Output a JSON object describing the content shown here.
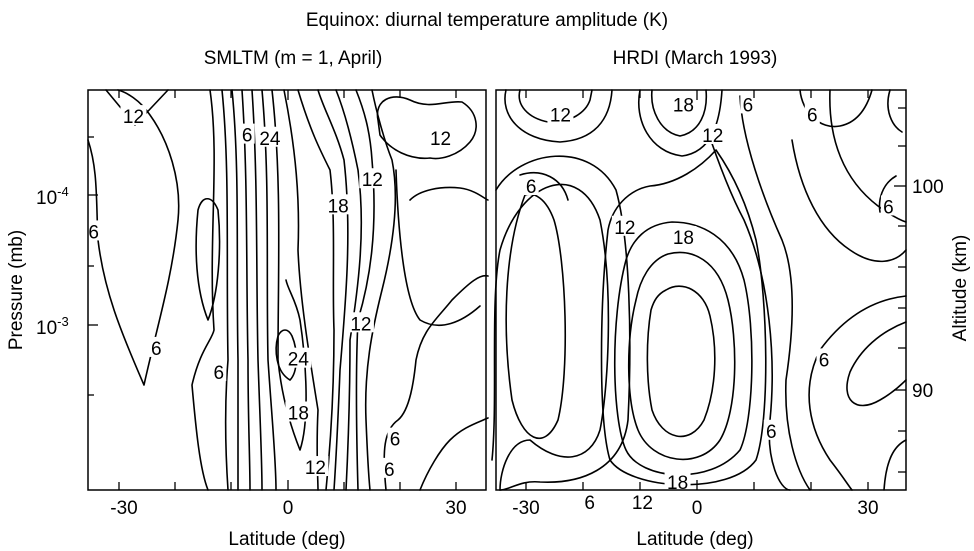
{
  "figure": {
    "title": "Equinox: diurnal temperature amplitude (K)"
  },
  "chart_data": [
    {
      "type": "contour",
      "title": "SMLTM (m = 1, April)",
      "xlabel": "Latitude (deg)",
      "ylabel": "Pressure (mb)",
      "xlim": [
        -35,
        35
      ],
      "y_scale": "log",
      "x_tick_labels": [
        "-30",
        "0",
        "30"
      ],
      "x_ticks": [
        -30,
        0,
        30
      ],
      "y_tick_labels": [
        "10",
        "10"
      ],
      "y_tick_exponents": [
        "-4",
        "-3"
      ],
      "contour_interval": 3,
      "contour_labels": [
        {
          "text": "12",
          "x": -27,
          "p": 3e-05
        },
        {
          "text": "6",
          "x": -7,
          "p": 4e-05
        },
        {
          "text": "24",
          "x": -3,
          "p": 4.2e-05
        },
        {
          "text": "12",
          "x": 27,
          "p": 4.2e-05
        },
        {
          "text": "12",
          "x": 15,
          "p": 8e-05
        },
        {
          "text": "18",
          "x": 9,
          "p": 0.00012
        },
        {
          "text": "6",
          "x": -34,
          "p": 0.00018
        },
        {
          "text": "12",
          "x": 13,
          "p": 0.00075
        },
        {
          "text": "6",
          "x": -23,
          "p": 0.0011
        },
        {
          "text": "24",
          "x": 2,
          "p": 0.0013
        },
        {
          "text": "6",
          "x": -12,
          "p": 0.0016
        },
        {
          "text": "18",
          "x": 2,
          "p": 0.003
        },
        {
          "text": "6",
          "x": 19,
          "p": 0.0045
        },
        {
          "text": "12",
          "x": 5,
          "p": 0.007
        },
        {
          "text": "6",
          "x": 18,
          "p": 0.0072
        }
      ]
    },
    {
      "type": "contour",
      "title": "HRDI (March 1993)",
      "xlabel": "Latitude (deg)",
      "ylabel": "Altitude (km)",
      "xlim": [
        -35,
        35
      ],
      "x_tick_labels": [
        "-30",
        "0",
        "30"
      ],
      "x_ticks": [
        -30,
        0,
        30
      ],
      "y_tick_labels": [
        "100",
        "90"
      ],
      "y_ticks": [
        100,
        90
      ],
      "contour_interval": 3,
      "contour_labels": [
        {
          "text": "12",
          "x": -24,
          "km": 103.5
        },
        {
          "text": "18",
          "x": -3,
          "km": 104
        },
        {
          "text": "6",
          "x": 8,
          "km": 104
        },
        {
          "text": "6",
          "x": 19,
          "km": 103.5
        },
        {
          "text": "12",
          "x": 2,
          "km": 102.5
        },
        {
          "text": "6",
          "x": -29,
          "km": 100
        },
        {
          "text": "6",
          "x": 32,
          "km": 99
        },
        {
          "text": "12",
          "x": -13,
          "km": 98
        },
        {
          "text": "18",
          "x": -3,
          "km": 97.5
        },
        {
          "text": "6",
          "x": 21,
          "km": 91.5
        },
        {
          "text": "6",
          "x": 12,
          "km": 88
        },
        {
          "text": "18",
          "x": -4,
          "km": 85.5
        },
        {
          "text": "6",
          "x": -19,
          "km": 84.5
        },
        {
          "text": "12",
          "x": -10,
          "km": 84.5
        }
      ]
    }
  ]
}
